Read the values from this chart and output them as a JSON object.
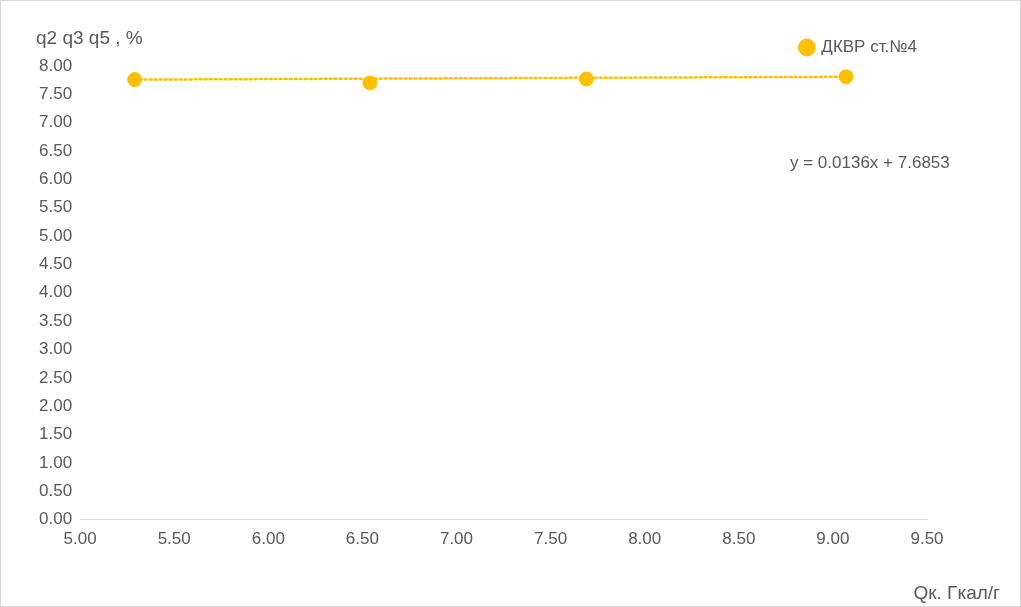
{
  "chart_data": {
    "type": "scatter",
    "xlabel": "Qк. Гкал/г",
    "ylabel": "q2 q3 q5 , %",
    "annotations": [
      "y = 0.0136x + 7.6853"
    ],
    "series": [
      {
        "name": "ДКВР ст.№4",
        "type": "scatter",
        "color": "#ffc000",
        "x": [
          5.29,
          6.54,
          7.69,
          9.07
        ],
        "values": [
          7.76,
          7.7,
          7.77,
          7.81
        ],
        "marker": "circle"
      },
      {
        "type": "line",
        "color": "#ffc000",
        "x": [
          5.29,
          9.07
        ],
        "values": [
          7.76,
          7.81
        ],
        "marker": "none",
        "line_style": "dotted"
      }
    ],
    "xlim": [
      5,
      9.5
    ],
    "xticks": [
      {
        "value": 5,
        "label": "5.00"
      },
      {
        "value": 5.5,
        "label": "5.50"
      },
      {
        "value": 6,
        "label": "6.00"
      },
      {
        "value": 6.5,
        "label": "6.50"
      },
      {
        "value": 7,
        "label": "7.00"
      },
      {
        "value": 7.5,
        "label": "7.50"
      },
      {
        "value": 8,
        "label": "8.00"
      },
      {
        "value": 8.5,
        "label": "8.50"
      },
      {
        "value": 9,
        "label": "9.00"
      },
      {
        "value": 9.5,
        "label": "9.50"
      }
    ],
    "ylim": [
      0,
      8
    ],
    "yticks": [
      {
        "value": 0,
        "label": "0.00"
      },
      {
        "value": 0.5,
        "label": "0.50"
      },
      {
        "value": 1,
        "label": "1.00"
      },
      {
        "value": 1.5,
        "label": "1.50"
      },
      {
        "value": 2,
        "label": "2.00"
      },
      {
        "value": 2.5,
        "label": "2.50"
      },
      {
        "value": 3,
        "label": "3.00"
      },
      {
        "value": 3.5,
        "label": "3.50"
      },
      {
        "value": 4,
        "label": "4.00"
      },
      {
        "value": 4.5,
        "label": "4.50"
      },
      {
        "value": 5,
        "label": "5.00"
      },
      {
        "value": 5.5,
        "label": "5.50"
      },
      {
        "value": 6,
        "label": "6.00"
      },
      {
        "value": 6.5,
        "label": "6.50"
      },
      {
        "value": 7,
        "label": "7.00"
      },
      {
        "value": 7.5,
        "label": "7.50"
      },
      {
        "value": 8,
        "label": "8.00"
      }
    ],
    "grid": false,
    "legend": "top right"
  }
}
